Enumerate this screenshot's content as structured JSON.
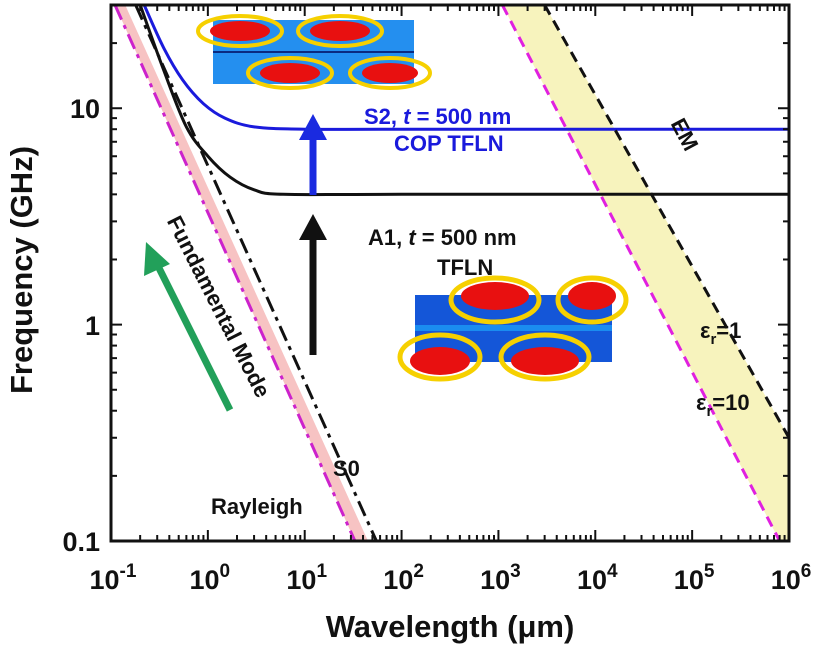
{
  "chart_data": {
    "type": "line",
    "x_scale": "log",
    "y_scale": "log",
    "xlabel": "Wavelength (μm)",
    "ylabel": "Frequency (GHz)",
    "xlim": [
      0.1,
      1000000
    ],
    "ylim": [
      0.1,
      30
    ],
    "grid": false,
    "x_ticks": [
      {
        "value": 0.1,
        "base": "10",
        "exp": "-1"
      },
      {
        "value": 1,
        "base": "10",
        "exp": "0"
      },
      {
        "value": 10,
        "base": "10",
        "exp": "1"
      },
      {
        "value": 100,
        "base": "10",
        "exp": "2"
      },
      {
        "value": 1000,
        "base": "10",
        "exp": "3"
      },
      {
        "value": 10000,
        "base": "10",
        "exp": "4"
      },
      {
        "value": 100000,
        "base": "10",
        "exp": "5"
      },
      {
        "value": 1000000,
        "base": "10",
        "exp": "6"
      }
    ],
    "y_ticks": [
      {
        "value": 0.1,
        "label": "0.1"
      },
      {
        "value": 1,
        "label": "1"
      },
      {
        "value": 10,
        "label": "10"
      }
    ],
    "series": [
      {
        "key": "s2",
        "color": "#1a1adc",
        "style": "solid",
        "width": 3,
        "points": [
          [
            0.22,
            30
          ],
          [
            0.35,
            19
          ],
          [
            0.55,
            13.5
          ],
          [
            0.9,
            10.5
          ],
          [
            1.5,
            9.0
          ],
          [
            3,
            8.2
          ],
          [
            10,
            8.0
          ],
          [
            100,
            8.0
          ],
          [
            1000000,
            8.0
          ]
        ]
      },
      {
        "key": "a1",
        "color": "#111111",
        "style": "solid",
        "width": 3,
        "points": [
          [
            0.2,
            30
          ],
          [
            0.35,
            15
          ],
          [
            0.6,
            8.2
          ],
          [
            1,
            6.0
          ],
          [
            1.7,
            4.8
          ],
          [
            3,
            4.2
          ],
          [
            6,
            4.0
          ],
          [
            100,
            4.0
          ],
          [
            1000000,
            4.0
          ]
        ]
      },
      {
        "key": "s0",
        "color": "#111111",
        "style": "dashdot",
        "width": 3,
        "points": [
          [
            0.18,
            30
          ],
          [
            55,
            0.1
          ]
        ]
      },
      {
        "key": "rayleigh",
        "color": "#cc22cc",
        "style": "dashdot",
        "width": 3,
        "points": [
          [
            0.11,
            30
          ],
          [
            33,
            0.1
          ]
        ]
      },
      {
        "key": "em-er1",
        "color": "#111111",
        "style": "dash",
        "width": 3,
        "points": [
          [
            3000,
            30
          ],
          [
            1000000,
            0.3
          ]
        ]
      },
      {
        "key": "em-er10",
        "color": "#e020e0",
        "style": "dash",
        "width": 3,
        "points": [
          [
            1100,
            30
          ],
          [
            800000,
            0.1
          ]
        ]
      }
    ],
    "bands": [
      {
        "key": "acoustic-band",
        "color": "#f7c3c3",
        "points": [
          [
            0.11,
            30
          ],
          [
            0.14,
            30
          ],
          [
            45,
            0.1
          ],
          [
            33,
            0.1
          ]
        ]
      },
      {
        "key": "em-band",
        "color": "#f7f3bd",
        "points": [
          [
            3000,
            30
          ],
          [
            1100,
            30
          ],
          [
            800000,
            0.1
          ],
          [
            1000000,
            0.1
          ],
          [
            1000000,
            0.3
          ]
        ]
      }
    ],
    "annotations": {
      "s2_label": {
        "prefix": "S2, ",
        "italic": "t",
        "suffix": " = 500 nm"
      },
      "s2_sub": "COP TFLN",
      "a1_label": {
        "prefix": "A1, ",
        "italic": "t",
        "suffix": " = 500 nm"
      },
      "a1_sub": "TFLN",
      "fundamental": "Fundamental Mode",
      "s0": "S0",
      "rayleigh": "Rayleigh",
      "em": "EM",
      "er1": {
        "symbol": "ε",
        "sub": "r",
        "rest": "=1"
      },
      "er10": {
        "symbol": "ε",
        "sub": "r",
        "rest": "=10"
      }
    },
    "arrow_colors": {
      "green": "#22a05a",
      "black": "#111111",
      "blue": "#1a2ae0"
    }
  }
}
